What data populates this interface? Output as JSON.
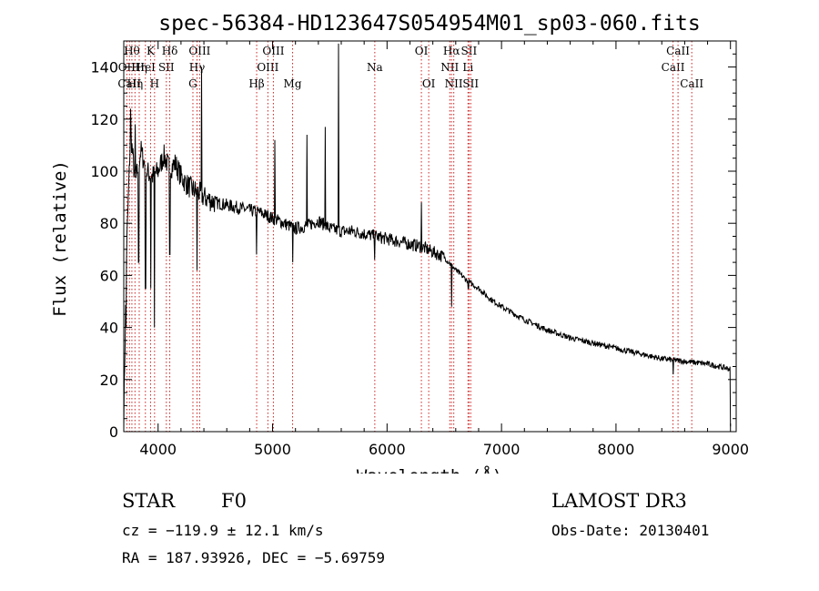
{
  "chart_data": {
    "type": "line",
    "title": "spec-56384-HD123647S054954M01_sp03-060.fits",
    "xlabel": "Wavelength (Å)",
    "ylabel": "Flux (relative)",
    "xlim": [
      3700,
      9050
    ],
    "ylim": [
      0,
      150
    ],
    "xticks": [
      4000,
      5000,
      6000,
      7000,
      8000,
      9000
    ],
    "yticks": [
      0,
      20,
      40,
      60,
      80,
      100,
      120,
      140
    ],
    "grid": false,
    "series": [
      {
        "name": "spectrum",
        "x": [
          3700,
          3725,
          3760,
          3800,
          3850,
          3900,
          3950,
          4000,
          4050,
          4100,
          4150,
          4200,
          4250,
          4300,
          4350,
          4400,
          4500,
          4600,
          4700,
          4800,
          4900,
          5000,
          5100,
          5200,
          5300,
          5400,
          5500,
          5600,
          5700,
          5800,
          5900,
          6000,
          6100,
          6200,
          6300,
          6400,
          6500,
          6600,
          6700,
          6800,
          6900,
          7000,
          7200,
          7400,
          7600,
          7800,
          8000,
          8200,
          8400,
          8600,
          8800,
          9000
        ],
        "y": [
          5,
          70,
          115,
          95,
          108,
          100,
          98,
          100,
          106,
          101,
          103,
          98,
          95,
          93,
          92,
          90,
          88,
          87,
          86,
          85,
          84,
          82,
          80,
          78,
          79,
          81,
          78,
          77,
          77,
          76,
          75,
          74,
          73,
          72,
          71,
          69,
          67,
          62,
          58,
          55,
          51,
          48,
          43,
          39,
          36,
          34,
          32,
          30,
          28,
          27,
          26,
          24
        ]
      }
    ],
    "emission_spikes": [
      {
        "x": 3760,
        "y": 124
      },
      {
        "x": 3800,
        "y": 118
      },
      {
        "x": 4340,
        "y": 135
      },
      {
        "x": 4380,
        "y": 140
      },
      {
        "x": 5020,
        "y": 112
      },
      {
        "x": 5300,
        "y": 114
      },
      {
        "x": 5460,
        "y": 117
      },
      {
        "x": 5577,
        "y": 149
      },
      {
        "x": 6300,
        "y": 88
      }
    ],
    "absorption_dips": [
      {
        "x": 3720,
        "y": 40
      },
      {
        "x": 3830,
        "y": 65
      },
      {
        "x": 3890,
        "y": 55
      },
      {
        "x": 3935,
        "y": 55
      },
      {
        "x": 3968,
        "y": 40
      },
      {
        "x": 4102,
        "y": 68
      },
      {
        "x": 4340,
        "y": 62
      },
      {
        "x": 4861,
        "y": 68
      },
      {
        "x": 5175,
        "y": 65
      },
      {
        "x": 5893,
        "y": 66
      },
      {
        "x": 6563,
        "y": 48
      },
      {
        "x": 6710,
        "y": 55
      },
      {
        "x": 8500,
        "y": 22
      },
      {
        "x": 9000,
        "y": 2
      }
    ],
    "line_markers": [
      {
        "x": 3727,
        "label": "OII",
        "row": 2
      },
      {
        "x": 3750,
        "label": "CaII",
        "row": 3
      },
      {
        "x": 3771,
        "label": "Hθ",
        "row": 1
      },
      {
        "x": 3798,
        "label": "Hη",
        "row": 3
      },
      {
        "x": 3835,
        "label": "Hη",
        "row": 2
      },
      {
        "x": 3889,
        "label": "HeI",
        "row": 2
      },
      {
        "x": 3934,
        "label": "K",
        "row": 1
      },
      {
        "x": 3969,
        "label": "H",
        "row": 3
      },
      {
        "x": 4072,
        "label": "SII",
        "row": 2
      },
      {
        "x": 4102,
        "label": "Hδ",
        "row": 1
      },
      {
        "x": 4304,
        "label": "G",
        "row": 3
      },
      {
        "x": 4340,
        "label": "Hγ",
        "row": 2
      },
      {
        "x": 4363,
        "label": "OIII",
        "row": 1
      },
      {
        "x": 4861,
        "label": "Hβ",
        "row": 3
      },
      {
        "x": 4959,
        "label": "OIII",
        "row": 2
      },
      {
        "x": 5007,
        "label": "OIII",
        "row": 1
      },
      {
        "x": 5175,
        "label": "Mg",
        "row": 3
      },
      {
        "x": 5893,
        "label": "Na",
        "row": 2
      },
      {
        "x": 6300,
        "label": "OI",
        "row": 1
      },
      {
        "x": 6364,
        "label": "OI",
        "row": 3
      },
      {
        "x": 6548,
        "label": "NII",
        "row": 2
      },
      {
        "x": 6563,
        "label": "Hα",
        "row": 1
      },
      {
        "x": 6583,
        "label": "NII",
        "row": 3
      },
      {
        "x": 6707,
        "label": "Li",
        "row": 2
      },
      {
        "x": 6716,
        "label": "SII",
        "row": 1
      },
      {
        "x": 6731,
        "label": "SII",
        "row": 3
      },
      {
        "x": 8498,
        "label": "CaII",
        "row": 2
      },
      {
        "x": 8542,
        "label": "CaII",
        "row": 1
      },
      {
        "x": 8662,
        "label": "CaII",
        "row": 3
      }
    ]
  },
  "info": {
    "object_class": "STAR",
    "subclass": "F0",
    "survey": "LAMOST DR3",
    "redshift": "cz = −119.9 ± 12.1 km/s",
    "obs_date": "Obs-Date: 20130401",
    "coords": "RA = 187.93926, DEC =  −5.69759"
  },
  "colors": {
    "spectrum": "#000000",
    "marker_line": "#cc2222",
    "axis": "#000000"
  }
}
